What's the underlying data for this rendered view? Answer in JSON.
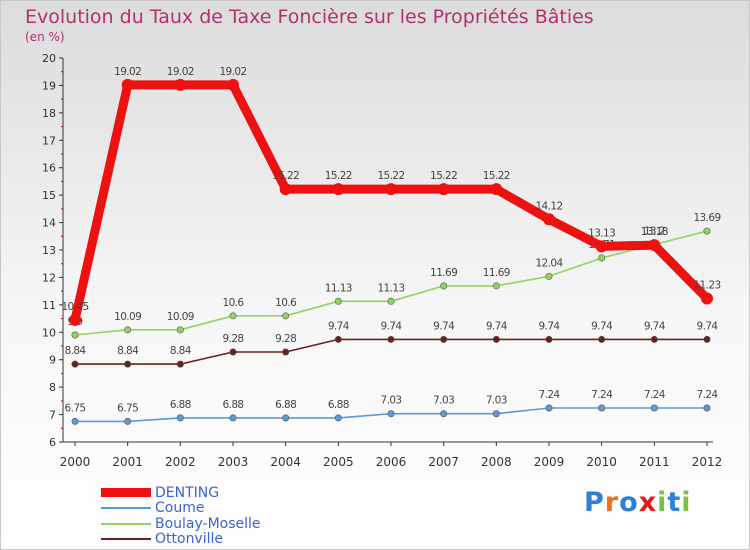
{
  "chart_data": {
    "type": "line",
    "title": "Evolution du Taux de Taxe Foncière sur les Propriétés Bâties",
    "subtitle": "(en %)",
    "x": [
      "2000",
      "2001",
      "2002",
      "2003",
      "2004",
      "2005",
      "2006",
      "2007",
      "2008",
      "2009",
      "2010",
      "2011",
      "2012"
    ],
    "ylim": [
      6,
      20
    ],
    "yticks": [
      "6",
      "7",
      "8",
      "9",
      "10",
      "11",
      "12",
      "13",
      "14",
      "15",
      "16",
      "17",
      "18",
      "19",
      "20"
    ],
    "grid": false,
    "legend_position": "bottom-left",
    "series": [
      {
        "name": "DENTING",
        "color": "#ee1111",
        "width": "thick",
        "values": [
          10.45,
          19.02,
          19.02,
          19.02,
          15.22,
          15.22,
          15.22,
          15.22,
          15.22,
          14.12,
          13.13,
          13.18,
          11.23
        ],
        "labels": [
          "10.45",
          "19.02",
          "19.02",
          "19.02",
          "15.22",
          "15.22",
          "15.22",
          "15.22",
          "15.22",
          "14.12",
          "13.13",
          "13.18",
          "11.23"
        ]
      },
      {
        "name": "Coume",
        "color": "#5b9bd5",
        "values": [
          6.75,
          6.75,
          6.88,
          6.88,
          6.88,
          6.88,
          7.03,
          7.03,
          7.03,
          7.24,
          7.24,
          7.24,
          7.24
        ],
        "labels": [
          "6.75",
          "6.75",
          "6.88",
          "6.88",
          "6.88",
          "6.88",
          "7.03",
          "7.03",
          "7.03",
          "7.24",
          "7.24",
          "7.24",
          "7.24"
        ]
      },
      {
        "name": "Boulay-Moselle",
        "color": "#8fd45f",
        "values": [
          9.9,
          10.09,
          10.09,
          10.6,
          10.6,
          11.13,
          11.13,
          11.69,
          11.69,
          12.04,
          12.71,
          13.2,
          13.69
        ],
        "labels": [
          "9.9",
          "10.09",
          "10.09",
          "10.6",
          "10.6",
          "11.13",
          "11.13",
          "11.69",
          "11.69",
          "12.04",
          "12.71",
          "13.2",
          "13.69"
        ]
      },
      {
        "name": "Ottonville",
        "color": "#6b1f1f",
        "values": [
          8.84,
          8.84,
          8.84,
          9.28,
          9.28,
          9.74,
          9.74,
          9.74,
          9.74,
          9.74,
          9.74,
          9.74,
          9.74
        ],
        "labels": [
          "8.84",
          "8.84",
          "8.84",
          "9.28",
          "9.28",
          "9.74",
          "9.74",
          "9.74",
          "9.74",
          "9.74",
          "9.74",
          "9.74",
          "9.74"
        ]
      }
    ]
  },
  "logo": {
    "letters": [
      "P",
      "r",
      "o",
      "x",
      "i",
      "t",
      "i"
    ],
    "colors": [
      "#2e7fd6",
      "#e8731b",
      "#2e7fd6",
      "#e21b1b",
      "#7cc242",
      "#2e7fd6",
      "#7cc242"
    ]
  }
}
